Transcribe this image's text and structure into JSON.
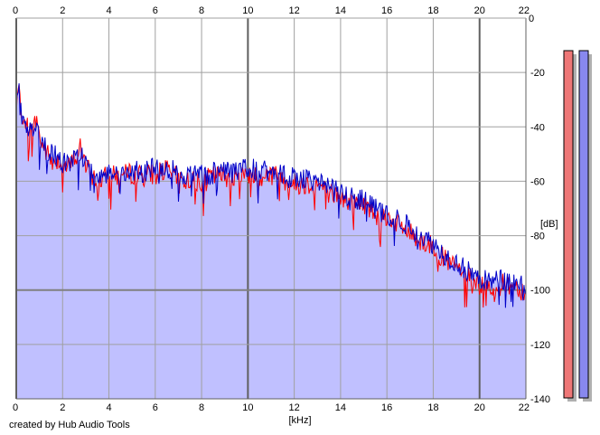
{
  "footer": {
    "credit": "created by Hub Audio Tools"
  },
  "chart_data": {
    "type": "line",
    "title": "",
    "xlabel": "[kHz]",
    "ylabel": "[dB]",
    "xlim": [
      0,
      22
    ],
    "ylim": [
      -140,
      0
    ],
    "x_ticks": [
      "0",
      "2",
      "4",
      "6",
      "8",
      "10",
      "12",
      "14",
      "16",
      "18",
      "20",
      "22"
    ],
    "y_ticks": [
      "-20",
      "-40",
      "-60",
      "-80",
      "-100",
      "-120",
      "-140"
    ],
    "grid": true,
    "fill_below": true,
    "colors": {
      "fill": "#c0c0ff",
      "red_series": "#ff0000",
      "blue_series": "#0000c8",
      "grid": "#a0a0a0",
      "meter_red": "#ee7777",
      "meter_blue": "#8888ee"
    },
    "series": [
      {
        "color": "red",
        "x": [
          0.0,
          0.1,
          0.2,
          0.3,
          0.5,
          0.7,
          0.9,
          1.0,
          1.2,
          1.5,
          1.8,
          2.0,
          2.3,
          2.6,
          2.8,
          3.0,
          3.5,
          4.0,
          4.5,
          5.0,
          5.5,
          6.0,
          6.5,
          7.0,
          7.5,
          8.0,
          8.5,
          9.0,
          9.5,
          10.0,
          10.5,
          11.0,
          11.5,
          12.0,
          12.5,
          13.0,
          13.5,
          14.0,
          14.5,
          15.0,
          15.5,
          16.0,
          16.5,
          17.0,
          17.5,
          18.0,
          18.5,
          19.0,
          19.5,
          20.0,
          20.5,
          21.0,
          21.5,
          22.0
        ],
        "y": [
          -35,
          -24,
          -34,
          -38,
          -40,
          -42,
          -36,
          -44,
          -48,
          -52,
          -52,
          -54,
          -55,
          -50,
          -47,
          -55,
          -60,
          -58,
          -58,
          -57,
          -58,
          -57,
          -56,
          -59,
          -60,
          -60,
          -58,
          -58,
          -59,
          -57,
          -58,
          -57,
          -59,
          -61,
          -61,
          -61,
          -64,
          -66,
          -68,
          -68,
          -72,
          -73,
          -76,
          -79,
          -82,
          -84,
          -89,
          -92,
          -94,
          -98,
          -99,
          -98,
          -98,
          -101
        ]
      },
      {
        "color": "blue",
        "x": [
          0.0,
          0.1,
          0.2,
          0.3,
          0.5,
          0.7,
          0.9,
          1.0,
          1.2,
          1.5,
          1.8,
          2.0,
          2.3,
          2.6,
          2.8,
          3.0,
          3.5,
          4.0,
          4.5,
          5.0,
          5.5,
          6.0,
          6.5,
          7.0,
          7.5,
          8.0,
          8.5,
          9.0,
          9.5,
          10.0,
          10.5,
          11.0,
          11.5,
          12.0,
          12.5,
          13.0,
          13.5,
          14.0,
          14.5,
          15.0,
          15.5,
          16.0,
          16.5,
          17.0,
          17.5,
          18.0,
          18.5,
          19.0,
          19.5,
          20.0,
          20.5,
          21.0,
          21.5,
          22.0
        ],
        "y": [
          -33,
          -24,
          -33,
          -37,
          -40,
          -41,
          -38,
          -43,
          -47,
          -50,
          -51,
          -53,
          -54,
          -51,
          -49,
          -54,
          -58,
          -57,
          -58,
          -56,
          -57,
          -55,
          -55,
          -57,
          -58,
          -58,
          -57,
          -56,
          -57,
          -55,
          -56,
          -56,
          -58,
          -59,
          -59,
          -60,
          -63,
          -64,
          -66,
          -67,
          -70,
          -72,
          -74,
          -77,
          -80,
          -83,
          -87,
          -90,
          -93,
          -96,
          -97,
          -96,
          -97,
          -98
        ]
      }
    ],
    "meters": [
      {
        "color": "red",
        "level": 1.0
      },
      {
        "color": "blue",
        "level": 1.0
      }
    ]
  }
}
